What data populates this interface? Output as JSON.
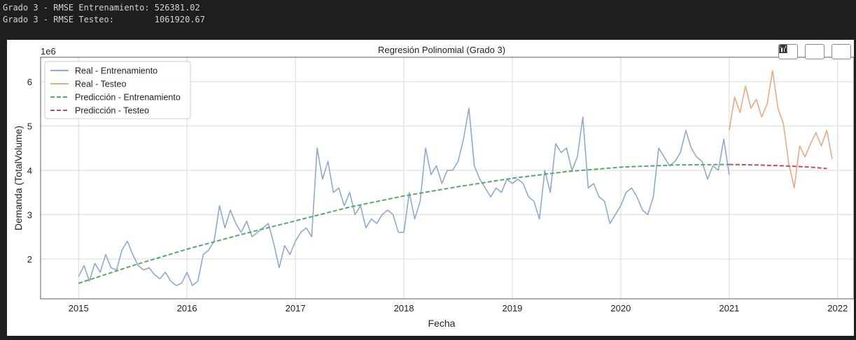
{
  "console": {
    "line1": "Grado 3 - RMSE Entrenamiento: 526381.02",
    "line2": "Grado 3 - RMSE Testeo:        1061920.67"
  },
  "toolbar": {
    "icons": [
      "copy-icon",
      "bar-chart-icon",
      "save-icon"
    ]
  },
  "chart_data": {
    "type": "line",
    "title": "Regresión Polinomial (Grado 3)",
    "xlabel": "Fecha",
    "ylabel": "Demanda (TotalVolume)",
    "y_offset_label": "1e6",
    "xlim": [
      2014.65,
      2022.15
    ],
    "ylim": [
      1.1,
      6.55
    ],
    "xticks": [
      2015,
      2016,
      2017,
      2018,
      2019,
      2020,
      2021,
      2022
    ],
    "xtick_labels": [
      "2015",
      "2016",
      "2017",
      "2018",
      "2019",
      "2020",
      "2021",
      "2022"
    ],
    "yticks": [
      2,
      3,
      4,
      5,
      6
    ],
    "ytick_labels": [
      "2",
      "3",
      "4",
      "5",
      "6"
    ],
    "grid": true,
    "legend_position": "top-left",
    "series": [
      {
        "name": "Real - Entrenamiento",
        "color": "#8fa9cc",
        "dash": "solid",
        "x": [
          2015.0,
          2015.05,
          2015.1,
          2015.15,
          2015.2,
          2015.25,
          2015.3,
          2015.35,
          2015.4,
          2015.45,
          2015.5,
          2015.55,
          2015.6,
          2015.65,
          2015.7,
          2015.75,
          2015.8,
          2015.85,
          2015.9,
          2015.95,
          2016.0,
          2016.05,
          2016.1,
          2016.15,
          2016.2,
          2016.25,
          2016.3,
          2016.35,
          2016.4,
          2016.45,
          2016.5,
          2016.55,
          2016.6,
          2016.65,
          2016.7,
          2016.75,
          2016.8,
          2016.85,
          2016.9,
          2016.95,
          2017.0,
          2017.05,
          2017.1,
          2017.15,
          2017.2,
          2017.25,
          2017.3,
          2017.35,
          2017.4,
          2017.45,
          2017.5,
          2017.55,
          2017.6,
          2017.65,
          2017.7,
          2017.75,
          2017.8,
          2017.85,
          2017.9,
          2017.95,
          2018.0,
          2018.05,
          2018.1,
          2018.15,
          2018.2,
          2018.25,
          2018.3,
          2018.35,
          2018.4,
          2018.45,
          2018.5,
          2018.55,
          2018.6,
          2018.65,
          2018.7,
          2018.75,
          2018.8,
          2018.85,
          2018.9,
          2018.95,
          2019.0,
          2019.05,
          2019.1,
          2019.15,
          2019.2,
          2019.25,
          2019.3,
          2019.35,
          2019.4,
          2019.45,
          2019.5,
          2019.55,
          2019.6,
          2019.65,
          2019.7,
          2019.75,
          2019.8,
          2019.85,
          2019.9,
          2019.95,
          2020.0,
          2020.05,
          2020.1,
          2020.15,
          2020.2,
          2020.25,
          2020.3,
          2020.35,
          2020.4,
          2020.45,
          2020.5,
          2020.55,
          2020.6,
          2020.65,
          2020.7,
          2020.75,
          2020.8,
          2020.85,
          2020.9,
          2020.95,
          2021.0
        ],
        "y": [
          1.6,
          1.85,
          1.5,
          1.9,
          1.7,
          2.1,
          1.8,
          1.75,
          2.2,
          2.4,
          2.1,
          1.85,
          1.75,
          1.8,
          1.65,
          1.55,
          1.7,
          1.5,
          1.4,
          1.45,
          1.7,
          1.4,
          1.5,
          2.1,
          2.2,
          2.4,
          3.2,
          2.7,
          3.1,
          2.8,
          2.6,
          2.85,
          2.5,
          2.6,
          2.7,
          2.8,
          2.35,
          1.8,
          2.3,
          2.1,
          2.4,
          2.6,
          2.7,
          2.5,
          4.5,
          3.8,
          4.2,
          3.5,
          3.6,
          3.2,
          3.5,
          3.0,
          3.2,
          2.7,
          2.9,
          2.8,
          3.0,
          3.1,
          3.0,
          2.6,
          2.6,
          3.5,
          2.9,
          3.3,
          4.5,
          3.9,
          4.1,
          3.7,
          4.0,
          4.0,
          4.2,
          4.7,
          5.4,
          4.1,
          3.8,
          3.6,
          3.4,
          3.6,
          3.5,
          3.8,
          3.7,
          3.8,
          3.7,
          3.4,
          3.3,
          2.9,
          4.0,
          3.5,
          4.6,
          4.4,
          4.5,
          4.0,
          4.3,
          5.2,
          3.6,
          3.7,
          3.4,
          3.3,
          2.8,
          3.0,
          3.2,
          3.5,
          3.6,
          3.4,
          3.1,
          3.0,
          3.4,
          4.5,
          4.3,
          4.1,
          4.2,
          4.4,
          4.9,
          4.5,
          4.3,
          4.2,
          3.8,
          4.1,
          4.0,
          4.7,
          3.9
        ]
      },
      {
        "name": "Real - Testeo",
        "color": "#e8a986",
        "dash": "solid",
        "x": [
          2021.0,
          2021.05,
          2021.1,
          2021.15,
          2021.2,
          2021.25,
          2021.3,
          2021.35,
          2021.4,
          2021.45,
          2021.5,
          2021.55,
          2021.6,
          2021.65,
          2021.7,
          2021.75,
          2021.8,
          2021.85,
          2021.9,
          2021.95
        ],
        "y": [
          4.9,
          5.65,
          5.3,
          5.9,
          5.4,
          5.6,
          5.2,
          5.5,
          6.25,
          5.4,
          5.05,
          4.15,
          3.6,
          4.55,
          4.3,
          4.6,
          4.85,
          4.55,
          4.9,
          4.25
        ]
      },
      {
        "name": "Predicción - Entrenamiento",
        "color": "#55a868",
        "dash": "dashed",
        "x": [
          2015.0,
          2015.5,
          2016.0,
          2016.5,
          2017.0,
          2017.5,
          2018.0,
          2018.5,
          2019.0,
          2019.5,
          2020.0,
          2020.5,
          2021.0
        ],
        "y": [
          1.45,
          1.85,
          2.22,
          2.55,
          2.86,
          3.17,
          3.42,
          3.63,
          3.82,
          3.97,
          4.07,
          4.12,
          4.13
        ]
      },
      {
        "name": "Predicción - Testeo",
        "color": "#c44e52",
        "dash": "dashed",
        "x": [
          2021.0,
          2021.25,
          2021.5,
          2021.75,
          2021.9
        ],
        "y": [
          4.13,
          4.12,
          4.1,
          4.07,
          4.04
        ]
      }
    ]
  }
}
